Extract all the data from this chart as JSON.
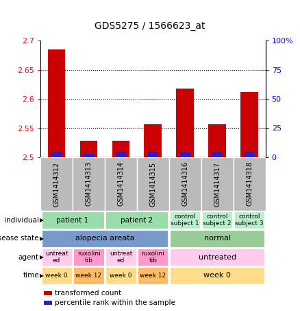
{
  "title": "GDS5275 / 1566623_at",
  "samples": [
    "GSM1414312",
    "GSM1414313",
    "GSM1414314",
    "GSM1414315",
    "GSM1414316",
    "GSM1414317",
    "GSM1414318"
  ],
  "red_values": [
    2.685,
    2.528,
    2.528,
    2.557,
    2.618,
    2.557,
    2.612
  ],
  "blue_percentile": [
    5,
    3,
    5,
    5,
    5,
    5,
    5
  ],
  "ylim_left": [
    2.5,
    2.7
  ],
  "ylim_right": [
    0,
    100
  ],
  "yticks_left": [
    2.5,
    2.55,
    2.6,
    2.65,
    2.7
  ],
  "ytick_labels_left": [
    "2.5",
    "2.55",
    "2.6",
    "2.65",
    "2.7"
  ],
  "yticks_right": [
    0,
    25,
    50,
    75,
    100
  ],
  "ytick_labels_right": [
    "0",
    "25",
    "50",
    "75",
    "100%"
  ],
  "bar_width": 0.55,
  "bar_color_red": "#cc0000",
  "bar_color_blue": "#2222cc",
  "annotation_rows": [
    {
      "label": "individual",
      "cells": [
        {
          "text": "patient 1",
          "colspan": 2,
          "bg": "#99ddaa",
          "fontsize": 7.5
        },
        {
          "text": "patient 2",
          "colspan": 2,
          "bg": "#99ddaa",
          "fontsize": 7.5
        },
        {
          "text": "control\nsubject 1",
          "colspan": 1,
          "bg": "#bbeecc",
          "fontsize": 6.5
        },
        {
          "text": "control\nsubject 2",
          "colspan": 1,
          "bg": "#bbeecc",
          "fontsize": 6.5
        },
        {
          "text": "control\nsubject 3",
          "colspan": 1,
          "bg": "#bbeecc",
          "fontsize": 6.5
        }
      ]
    },
    {
      "label": "disease state",
      "cells": [
        {
          "text": "alopecia areata",
          "colspan": 4,
          "bg": "#7799cc",
          "fontsize": 8
        },
        {
          "text": "normal",
          "colspan": 3,
          "bg": "#99cc99",
          "fontsize": 8
        }
      ]
    },
    {
      "label": "agent",
      "cells": [
        {
          "text": "untreat\ned",
          "colspan": 1,
          "bg": "#ffccee",
          "fontsize": 6.5
        },
        {
          "text": "ruxolini\ntib",
          "colspan": 1,
          "bg": "#ff99cc",
          "fontsize": 6.5
        },
        {
          "text": "untreat\ned",
          "colspan": 1,
          "bg": "#ffccee",
          "fontsize": 6.5
        },
        {
          "text": "ruxolini\ntib",
          "colspan": 1,
          "bg": "#ff99cc",
          "fontsize": 6.5
        },
        {
          "text": "untreated",
          "colspan": 3,
          "bg": "#ffccee",
          "fontsize": 8
        }
      ]
    },
    {
      "label": "time",
      "cells": [
        {
          "text": "week 0",
          "colspan": 1,
          "bg": "#ffdd88",
          "fontsize": 6.5
        },
        {
          "text": "week 12",
          "colspan": 1,
          "bg": "#ffbb66",
          "fontsize": 6.5
        },
        {
          "text": "week 0",
          "colspan": 1,
          "bg": "#ffdd88",
          "fontsize": 6.5
        },
        {
          "text": "week 12",
          "colspan": 1,
          "bg": "#ffbb66",
          "fontsize": 6.5
        },
        {
          "text": "week 0",
          "colspan": 3,
          "bg": "#ffdd88",
          "fontsize": 8
        }
      ]
    }
  ],
  "legend_items": [
    {
      "color": "#cc0000",
      "label": "transformed count"
    },
    {
      "color": "#2222cc",
      "label": "percentile rank within the sample"
    }
  ],
  "sample_col_bg": "#bbbbbb",
  "bar_base": 2.5
}
